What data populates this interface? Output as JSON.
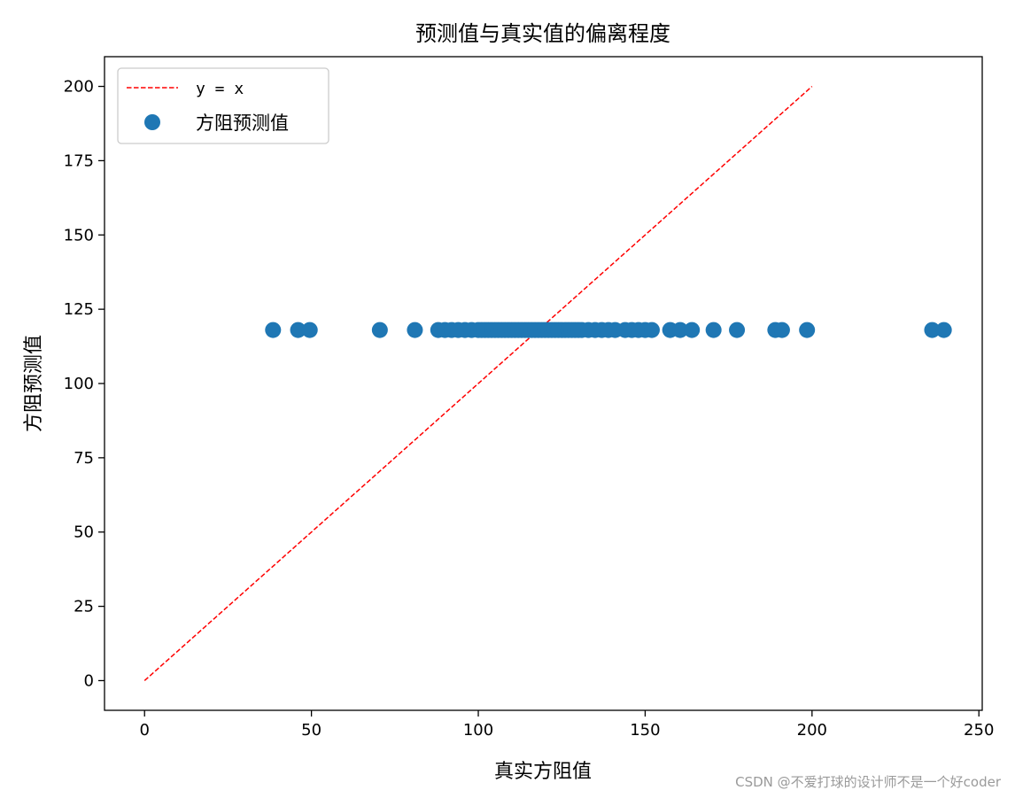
{
  "chart_data": {
    "type": "scatter",
    "title": "预测值与真实值的偏离程度",
    "xlabel": "真实方阻值",
    "ylabel": "方阻预测值",
    "xlim": [
      -12,
      251
    ],
    "ylim": [
      -10,
      210
    ],
    "xticks": [
      0,
      50,
      100,
      150,
      200,
      250
    ],
    "yticks": [
      0,
      25,
      50,
      75,
      100,
      125,
      150,
      175,
      200
    ],
    "grid": false,
    "legend_position": "top-left",
    "series": [
      {
        "name": "y = x",
        "kind": "line",
        "style": "dashed",
        "color": "#ff0000",
        "x": [
          0,
          200
        ],
        "y": [
          0,
          200
        ]
      },
      {
        "name": "方阻预测值",
        "kind": "scatter",
        "color": "#1f77b4",
        "x": [
          38.5,
          46,
          49.5,
          70.5,
          81,
          88,
          90,
          92,
          94,
          96,
          98,
          100,
          101,
          102,
          103,
          104,
          105,
          106,
          107,
          108,
          109,
          110,
          111,
          112,
          113,
          114,
          115,
          116,
          117,
          118,
          119,
          120,
          121,
          122,
          123,
          124,
          125,
          126,
          127,
          128,
          129,
          130,
          131,
          133,
          135,
          137,
          139,
          141,
          144,
          146,
          148,
          150,
          152,
          157.5,
          160.5,
          164,
          170.5,
          177.5,
          189,
          191,
          198.5,
          236,
          239.5
        ],
        "y": [
          118,
          118,
          118,
          118,
          118,
          118,
          118,
          118,
          118,
          118,
          118,
          118,
          118,
          118,
          118,
          118,
          118,
          118,
          118,
          118,
          118,
          118,
          118,
          118,
          118,
          118,
          118,
          118,
          118,
          118,
          118,
          118,
          118,
          118,
          118,
          118,
          118,
          118,
          118,
          118,
          118,
          118,
          118,
          118,
          118,
          118,
          118,
          118,
          118,
          118,
          118,
          118,
          118,
          118,
          118,
          118,
          118,
          118,
          118,
          118,
          118,
          118,
          118
        ]
      }
    ]
  },
  "watermark": "CSDN @不爱打球的设计师不是一个好coder"
}
